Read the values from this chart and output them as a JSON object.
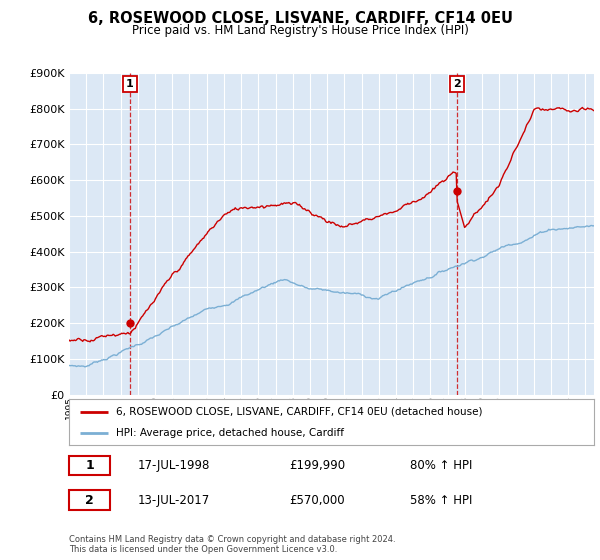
{
  "title_line1": "6, ROSEWOOD CLOSE, LISVANE, CARDIFF, CF14 0EU",
  "title_line2": "Price paid vs. HM Land Registry's House Price Index (HPI)",
  "legend_label1": "6, ROSEWOOD CLOSE, LISVANE, CARDIFF, CF14 0EU (detached house)",
  "legend_label2": "HPI: Average price, detached house, Cardiff",
  "sale1_date": "17-JUL-1998",
  "sale1_price": "£199,990",
  "sale1_hpi": "80% ↑ HPI",
  "sale2_date": "13-JUL-2017",
  "sale2_price": "£570,000",
  "sale2_hpi": "58% ↑ HPI",
  "footer": "Contains HM Land Registry data © Crown copyright and database right 2024.\nThis data is licensed under the Open Government Licence v3.0.",
  "bg_color": "#ffffff",
  "plot_bg_color": "#dce8f5",
  "grid_color": "#ffffff",
  "red_color": "#cc0000",
  "blue_color": "#7bafd4",
  "sale1_year": 1998.54,
  "sale1_value": 199990,
  "sale2_year": 2017.54,
  "sale2_value": 570000,
  "ylim_min": 0,
  "ylim_max": 900000,
  "xlim_min": 1995.0,
  "xlim_max": 2025.5
}
